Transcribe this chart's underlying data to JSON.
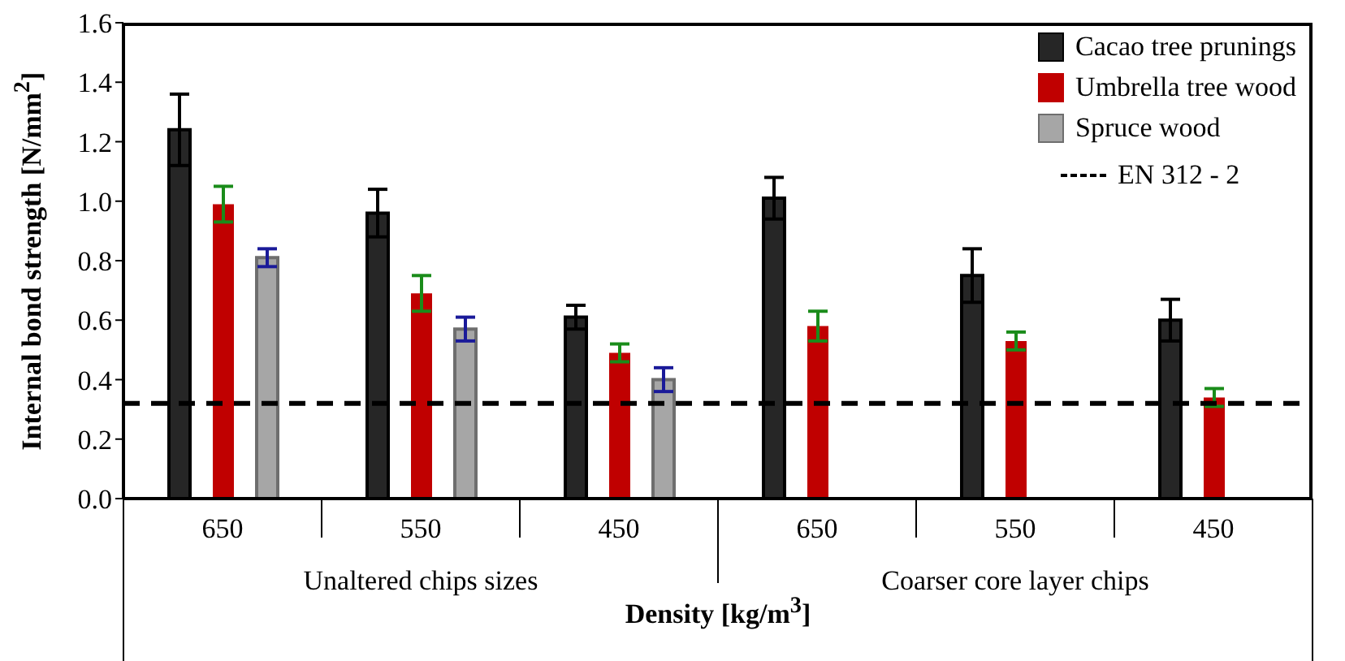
{
  "chart_data": {
    "type": "bar",
    "xlabel": "Density [kg/m$^{3}$]",
    "ylabel": "Internal bond strength [N/mm$^{2}$]",
    "categories": [
      "650",
      "550",
      "450",
      "650",
      "550",
      "450"
    ],
    "series": [
      {
        "name": "Cacao tree prunings",
        "color": "#262626",
        "values": [
          1.24,
          0.96,
          0.61,
          1.01,
          0.75,
          0.6
        ],
        "errors": [
          0.12,
          0.08,
          0.04,
          0.07,
          0.09,
          0.07
        ]
      },
      {
        "name": "Umbrella tree wood",
        "color": "#c00000",
        "values": [
          0.99,
          0.69,
          0.49,
          0.58,
          0.53,
          0.34
        ],
        "errors": [
          0.06,
          0.06,
          0.03,
          0.05,
          0.03,
          0.03
        ]
      },
      {
        "name": "Spruce wood",
        "color": "#a6a6a6",
        "values": [
          0.81,
          0.57,
          0.4,
          null,
          null,
          null
        ],
        "errors": [
          0.03,
          0.04,
          0.04,
          null,
          null,
          null
        ]
      }
    ],
    "ylim": [
      0,
      1.6
    ],
    "yticks": [
      {
        "value": 0,
        "label": "0.0"
      },
      {
        "value": 0.2,
        "label": "0.2"
      },
      {
        "value": 0.4,
        "label": "0.4"
      },
      {
        "value": 0.6,
        "label": "0.6"
      },
      {
        "value": 0.8,
        "label": "0.8"
      },
      {
        "value": 1,
        "label": "1.0"
      },
      {
        "value": 1.2,
        "label": "1.2"
      },
      {
        "value": 1.4,
        "label": "1.4"
      },
      {
        "value": 1.6,
        "label": "1.6"
      }
    ],
    "ref_lines": [
      {
        "axis": "y",
        "value": 0.32,
        "label": "EN 312 - 2",
        "color": "#000000",
        "line_style": "dashed"
      }
    ],
    "annotations": [
      "Unaltered chips sizes",
      "Coarser core layer chips"
    ],
    "legend": "top right",
    "grid": false
  }
}
